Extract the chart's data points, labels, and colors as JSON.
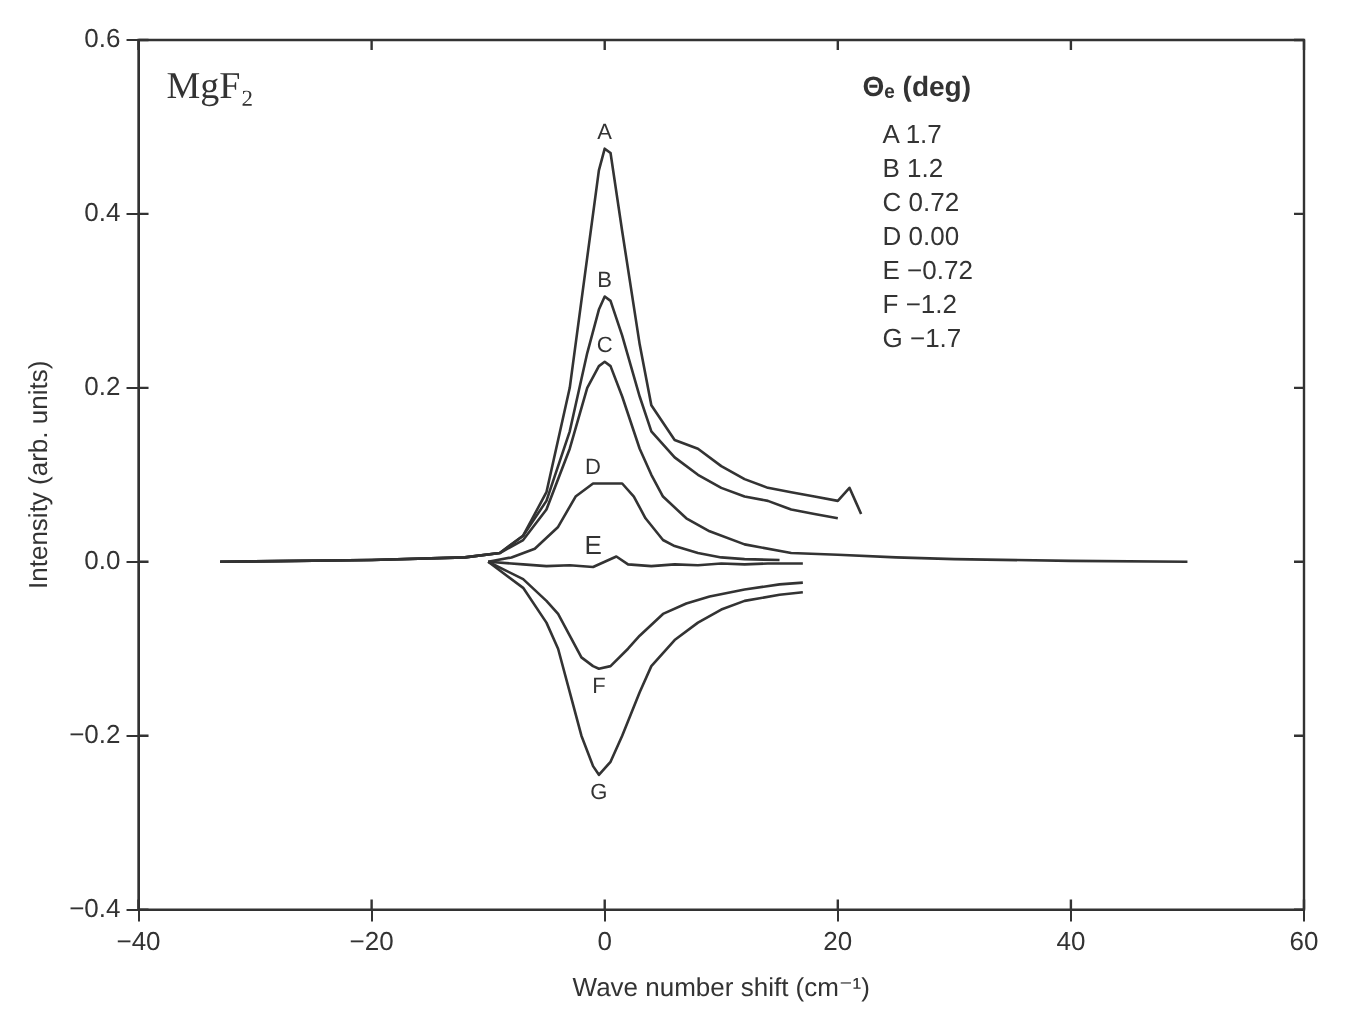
{
  "chart_data": {
    "type": "line",
    "xlabel": "Wave number shift (cm⁻¹)",
    "ylabel": "Intensity (arb. units)",
    "xlim": [
      -40,
      60
    ],
    "xticks": [
      -40,
      -20,
      0,
      20,
      40,
      60
    ],
    "ylim": [
      -0.4,
      0.6
    ],
    "yticks": [
      -0.4,
      -0.2,
      {
        "value": 0,
        "label": "0.0"
      },
      0.2,
      0.4,
      0.6
    ],
    "grid": false,
    "legend": false,
    "marker": "none",
    "line_style": "solid",
    "annotations": [
      "MgF₂",
      "Θₑ (deg)",
      "A 1.7",
      "B 1.2",
      "C 0.72",
      "D 0.00",
      "E −0.72",
      "F −1.2",
      "G −1.7"
    ],
    "series": [
      {
        "name": "A",
        "color": "#333333",
        "x": [
          -33,
          -20,
          -12,
          -9,
          -7,
          -5,
          -3,
          -1.5,
          -0.5,
          0,
          0.5,
          1.5,
          3,
          4,
          6,
          8,
          10,
          12,
          14,
          16,
          18,
          20,
          21,
          21.5,
          22
        ],
        "values": [
          0,
          0.002,
          0.005,
          0.01,
          0.03,
          0.08,
          0.2,
          0.35,
          0.45,
          0.475,
          0.47,
          0.38,
          0.25,
          0.18,
          0.14,
          0.13,
          0.11,
          0.095,
          0.085,
          0.08,
          0.075,
          0.07,
          0.085,
          0.07,
          0.055
        ]
      },
      {
        "name": "B",
        "color": "#333333",
        "x": [
          -33,
          -20,
          -12,
          -9,
          -7,
          -5,
          -3,
          -1.5,
          -0.5,
          0,
          0.5,
          1.5,
          3,
          4,
          6,
          8,
          10,
          12,
          14,
          16,
          18,
          20
        ],
        "values": [
          0,
          0.002,
          0.005,
          0.01,
          0.03,
          0.07,
          0.15,
          0.24,
          0.29,
          0.305,
          0.3,
          0.26,
          0.19,
          0.15,
          0.12,
          0.1,
          0.085,
          0.075,
          0.07,
          0.06,
          0.055,
          0.05
        ]
      },
      {
        "name": "C",
        "color": "#333333",
        "x": [
          -33,
          -20,
          -12,
          -9,
          -7,
          -5,
          -3,
          -1.5,
          -0.5,
          0,
          0.5,
          1.5,
          3,
          4,
          5,
          7,
          9,
          12,
          16,
          20,
          25,
          30,
          40,
          50
        ],
        "values": [
          0,
          0.002,
          0.005,
          0.01,
          0.025,
          0.06,
          0.13,
          0.2,
          0.225,
          0.23,
          0.225,
          0.19,
          0.13,
          0.1,
          0.075,
          0.05,
          0.035,
          0.02,
          0.01,
          0.008,
          0.005,
          0.003,
          0.001,
          0
        ]
      },
      {
        "name": "D",
        "color": "#333333",
        "x": [
          -10,
          -8,
          -6,
          -4,
          -2.5,
          -1,
          0,
          1.5,
          2.5,
          3.5,
          5,
          6,
          8,
          10,
          12,
          15
        ],
        "values": [
          0,
          0.005,
          0.015,
          0.04,
          0.075,
          0.09,
          0.09,
          0.09,
          0.075,
          0.05,
          0.025,
          0.018,
          0.01,
          0.005,
          0.003,
          0.002
        ]
      },
      {
        "name": "E",
        "color": "#333333",
        "x": [
          -10,
          -7,
          -5,
          -3,
          -1,
          1,
          2,
          4,
          6,
          8,
          10,
          12,
          14,
          17
        ],
        "values": [
          0,
          -0.003,
          -0.005,
          -0.004,
          -0.006,
          0.006,
          -0.003,
          -0.005,
          -0.003,
          -0.004,
          -0.002,
          -0.003,
          -0.002,
          -0.002
        ]
      },
      {
        "name": "F",
        "color": "#333333",
        "x": [
          -10,
          -7,
          -5,
          -4,
          -3,
          -2,
          -1,
          -0.5,
          0.5,
          2,
          3,
          5,
          7,
          9,
          12,
          15,
          17
        ],
        "values": [
          0,
          -0.02,
          -0.045,
          -0.06,
          -0.085,
          -0.11,
          -0.12,
          -0.123,
          -0.12,
          -0.1,
          -0.085,
          -0.06,
          -0.048,
          -0.04,
          -0.032,
          -0.026,
          -0.024
        ]
      },
      {
        "name": "G",
        "color": "#333333",
        "x": [
          -10,
          -7,
          -5,
          -4,
          -3,
          -2,
          -1,
          -0.5,
          0.5,
          1.5,
          3,
          4,
          6,
          8,
          10,
          12,
          15,
          17
        ],
        "values": [
          0,
          -0.03,
          -0.07,
          -0.1,
          -0.15,
          -0.2,
          -0.235,
          -0.245,
          -0.23,
          -0.2,
          -0.15,
          -0.12,
          -0.09,
          -0.07,
          -0.055,
          -0.045,
          -0.038,
          -0.035
        ]
      }
    ]
  }
}
